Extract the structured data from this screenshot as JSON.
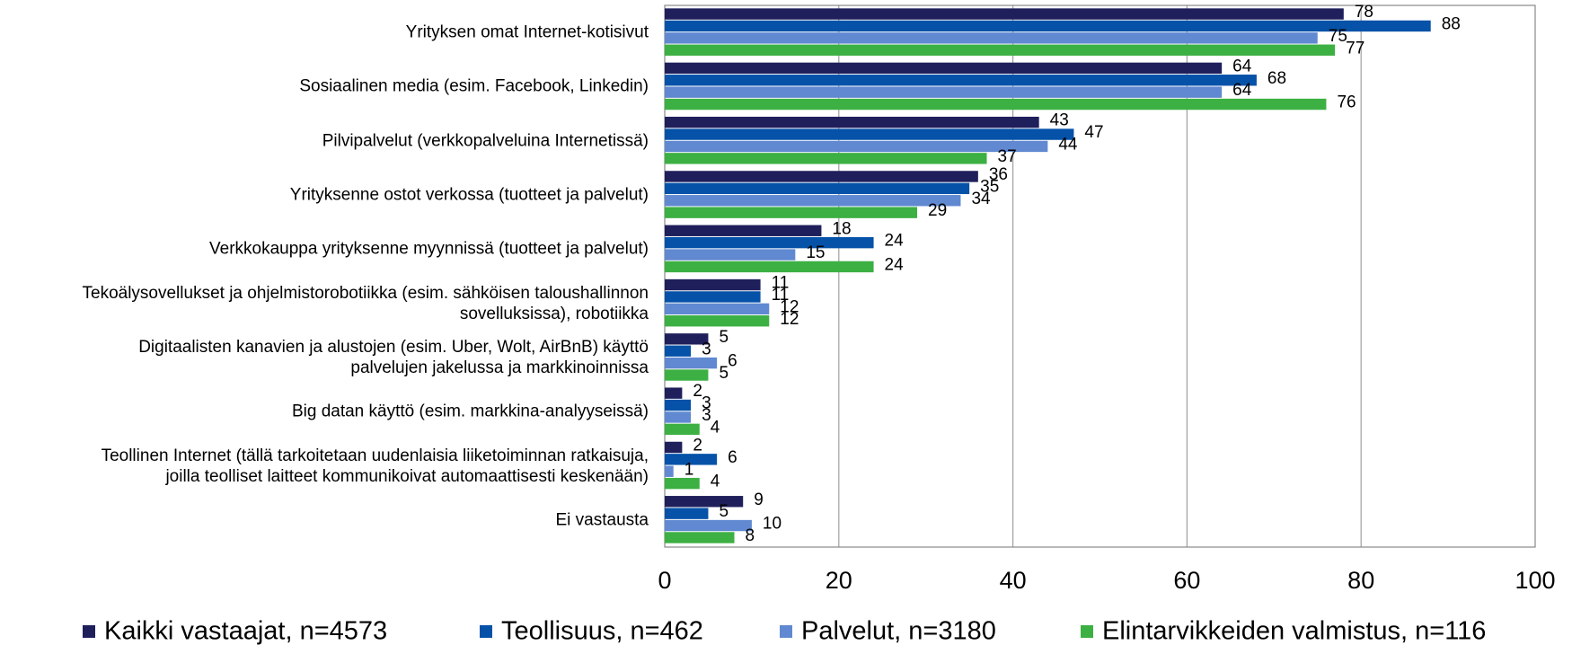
{
  "chart_data": {
    "type": "hbar",
    "categories": [
      "Yrityksen omat Internet-kotisivut",
      "Sosiaalinen media (esim. Facebook, Linkedin)",
      "Pilvipalvelut  (verkkopalveluina Internetissä)",
      "Yrityksenne ostot verkossa (tuotteet ja palvelut)",
      "Verkkokauppa yrityksenne myynnissä (tuotteet ja palvelut)",
      "Tekoälysovellukset ja ohjelmistorobotiikka (esim. sähköisen taloushallinnon\nsovelluksissa), robotiikka",
      "Digitaalisten kanavien ja alustojen (esim. Uber, Wolt, AirBnB) käyttö\npalvelujen jakelussa ja markkinoinnissa",
      "Big datan käyttö (esim. markkina-analyyseissä)",
      "Teollinen Internet (tällä tarkoitetaan uudenlaisia liiketoiminnan ratkaisuja,\njoilla teolliset laitteet kommunikoivat automaattisesti keskenään)",
      "Ei vastausta"
    ],
    "series": [
      {
        "name": "Kaikki vastaajat, n=4573",
        "color": "#1f1f5c",
        "values": [
          78,
          64,
          43,
          36,
          18,
          11,
          5,
          2,
          2,
          9
        ]
      },
      {
        "name": "Teollisuus, n=462",
        "color": "#0552a8",
        "values": [
          88,
          68,
          47,
          35,
          24,
          11,
          3,
          3,
          6,
          5
        ]
      },
      {
        "name": "Palvelut, n=3180",
        "color": "#6089d1",
        "values": [
          75,
          64,
          44,
          34,
          15,
          12,
          6,
          3,
          1,
          10
        ]
      },
      {
        "name": "Elintarvikkeiden valmistus, n=116",
        "color": "#3cb043",
        "values": [
          77,
          76,
          37,
          29,
          24,
          12,
          5,
          4,
          4,
          8
        ]
      }
    ],
    "xlim": [
      0,
      100
    ],
    "xticks": [
      0,
      20,
      40,
      60,
      80,
      100
    ],
    "grid": true,
    "legend": "bottom"
  }
}
